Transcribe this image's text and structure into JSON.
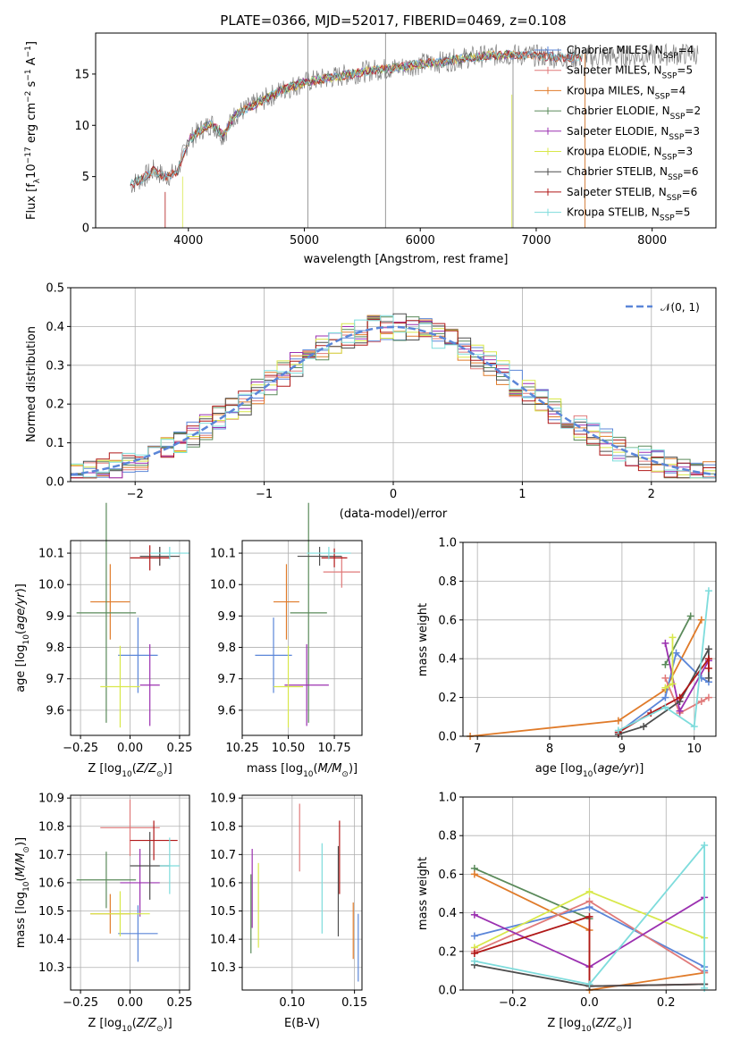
{
  "figure_title": "PLATE=0366, MJD=52017, FIBERID=0469, z=0.108",
  "colors": {
    "Chabrier MILES": "#5b86d8",
    "Salpeter MILES": "#e07a7a",
    "Kroupa MILES": "#e07b2a",
    "Chabrier ELODIE": "#5a8a5a",
    "Salpeter ELODIE": "#9b30b0",
    "Kroupa ELODIE": "#d8e84a",
    "Chabrier STELIB": "#4d4d4d",
    "Salpeter STELIB": "#b01818",
    "Kroupa STELIB": "#7edcdc",
    "data_gray": "#808080",
    "pink": "#e884c0",
    "gaussian": "#5b86d8"
  },
  "chart_data": [
    {
      "id": "spectrum",
      "type": "line",
      "title": "PLATE=0366, MJD=52017, FIBERID=0469, z=0.108",
      "xlabel": "wavelength [Angstrom, rest frame]",
      "ylabel": "Flux [f",
      "xlim": [
        3200,
        8550
      ],
      "ylim": [
        0,
        19
      ],
      "xticks": [
        "4000",
        "5000",
        "6000",
        "7000",
        "8000"
      ],
      "yticks": [
        "0",
        "5",
        "10",
        "15"
      ],
      "legend_position": "top-right",
      "legend": [
        {
          "label": "Chabrier MILES, N",
          "nssp": "4",
          "color_key": "Chabrier MILES"
        },
        {
          "label": "Salpeter MILES, N",
          "nssp": "5",
          "color_key": "Salpeter MILES"
        },
        {
          "label": "Kroupa MILES, N",
          "nssp": "4",
          "color_key": "Kroupa MILES"
        },
        {
          "label": "Chabrier ELODIE, N",
          "nssp": "2",
          "color_key": "Chabrier ELODIE"
        },
        {
          "label": "Salpeter ELODIE, N",
          "nssp": "3",
          "color_key": "Salpeter ELODIE"
        },
        {
          "label": "Kroupa ELODIE, N",
          "nssp": "3",
          "color_key": "Kroupa ELODIE"
        },
        {
          "label": "Chabrier STELIB, N",
          "nssp": "6",
          "color_key": "Chabrier STELIB"
        },
        {
          "label": "Salpeter STELIB, N",
          "nssp": "6",
          "color_key": "Salpeter STELIB"
        },
        {
          "label": "Kroupa STELIB, N",
          "nssp": "5",
          "color_key": "Kroupa STELIB"
        }
      ],
      "continuum": [
        [
          3500,
          4.2
        ],
        [
          3600,
          4.8
        ],
        [
          3700,
          5.6
        ],
        [
          3800,
          5.0
        ],
        [
          3900,
          5.4
        ],
        [
          4000,
          8.5
        ],
        [
          4100,
          9.5
        ],
        [
          4200,
          10.2
        ],
        [
          4300,
          9.0
        ],
        [
          4400,
          11.0
        ],
        [
          4600,
          12.2
        ],
        [
          4800,
          13.4
        ],
        [
          5000,
          14.2
        ],
        [
          5200,
          14.6
        ],
        [
          5400,
          15.0
        ],
        [
          5600,
          15.4
        ],
        [
          5800,
          15.6
        ],
        [
          6000,
          16.0
        ],
        [
          6200,
          16.2
        ],
        [
          6400,
          16.6
        ],
        [
          6600,
          16.8
        ],
        [
          6800,
          16.9
        ],
        [
          7000,
          16.8
        ],
        [
          7200,
          16.6
        ],
        [
          7400,
          16.6
        ]
      ]
    },
    {
      "id": "residual-histogram",
      "type": "line",
      "xlabel": "(data-model)/error",
      "ylabel": "Normed distribution",
      "xlim": [
        -2.5,
        2.5
      ],
      "ylim": [
        0,
        0.5
      ],
      "xticks": [
        "−2",
        "−1",
        "0",
        "1",
        "2"
      ],
      "yticks": [
        "0.0",
        "0.1",
        "0.2",
        "0.3",
        "0.4",
        "0.5"
      ],
      "legend": "𝒩(0, 1)",
      "legend_position": "top-right",
      "bin_width": 0.1
    },
    {
      "id": "age-vs-z",
      "type": "scatter",
      "xlabel": "Z [log",
      "ylabel": "age  [log",
      "xlim": [
        -0.3,
        0.3
      ],
      "ylim": [
        9.52,
        10.14
      ],
      "xticks": [
        "−0.25",
        "0.00",
        "0.25"
      ],
      "yticks": [
        "9.6",
        "9.7",
        "9.8",
        "9.9",
        "10.0",
        "10.1"
      ],
      "points": [
        {
          "model": "Chabrier MILES",
          "x": 0.04,
          "xerr": 0.1,
          "y": 9.775,
          "yerr": 0.12
        },
        {
          "model": "Salpeter MILES",
          "x": 0.15,
          "xerr": 0.1,
          "y": 10.09,
          "yerr": 0.03
        },
        {
          "model": "Kroupa MILES",
          "x": -0.1,
          "xerr": 0.1,
          "y": 9.945,
          "yerr": 0.12
        },
        {
          "model": "Chabrier ELODIE",
          "x": -0.12,
          "xerr": 0.15,
          "y": 9.91,
          "yerr": 0.35
        },
        {
          "model": "Salpeter ELODIE",
          "x": 0.1,
          "xerr": 0.05,
          "y": 9.68,
          "yerr": 0.13
        },
        {
          "model": "Kroupa ELODIE",
          "x": -0.05,
          "xerr": 0.1,
          "y": 9.675,
          "yerr": 0.13
        },
        {
          "model": "Chabrier STELIB",
          "x": 0.15,
          "xerr": 0.1,
          "y": 10.09,
          "yerr": 0.03
        },
        {
          "model": "Salpeter STELIB",
          "x": 0.1,
          "xerr": 0.1,
          "y": 10.085,
          "yerr": 0.04
        },
        {
          "model": "Kroupa STELIB",
          "x": 0.2,
          "xerr": 0.1,
          "y": 10.1,
          "yerr": 0.02
        }
      ]
    },
    {
      "id": "age-vs-mass",
      "type": "scatter",
      "xlabel": "mass [log",
      "ylabel": "",
      "xlim": [
        10.25,
        10.9
      ],
      "ylim": [
        9.52,
        10.14
      ],
      "xticks": [
        "10.25",
        "10.50",
        "10.75"
      ],
      "yticks": [
        "9.6",
        "9.7",
        "9.8",
        "9.9",
        "10.0",
        "10.1"
      ],
      "points": [
        {
          "model": "Chabrier MILES",
          "x": 10.42,
          "xerr": 0.1,
          "y": 9.775,
          "yerr": 0.12
        },
        {
          "model": "Salpeter MILES",
          "x": 10.79,
          "xerr": 0.1,
          "y": 10.04,
          "yerr": 0.05
        },
        {
          "model": "Kroupa MILES",
          "x": 10.49,
          "xerr": 0.07,
          "y": 9.945,
          "yerr": 0.12
        },
        {
          "model": "Chabrier ELODIE",
          "x": 10.61,
          "xerr": 0.1,
          "y": 9.91,
          "yerr": 0.35
        },
        {
          "model": "Salpeter ELODIE",
          "x": 10.6,
          "xerr": 0.12,
          "y": 9.68,
          "yerr": 0.13
        },
        {
          "model": "Kroupa ELODIE",
          "x": 10.5,
          "xerr": 0.08,
          "y": 9.675,
          "yerr": 0.13
        },
        {
          "model": "Chabrier STELIB",
          "x": 10.67,
          "xerr": 0.12,
          "y": 10.09,
          "yerr": 0.03
        },
        {
          "model": "Salpeter STELIB",
          "x": 10.75,
          "xerr": 0.07,
          "y": 10.085,
          "yerr": 0.03
        },
        {
          "model": "Kroupa STELIB",
          "x": 10.72,
          "xerr": 0.12,
          "y": 10.1,
          "yerr": 0.02
        }
      ]
    },
    {
      "id": "massweight-vs-age",
      "type": "line",
      "xlabel": "age  [log",
      "ylabel": "mass weight",
      "xlim": [
        6.8,
        10.3
      ],
      "ylim": [
        0,
        1
      ],
      "xticks": [
        "7",
        "8",
        "9",
        "10"
      ],
      "yticks": [
        "0.0",
        "0.2",
        "0.4",
        "0.6",
        "0.8",
        "1.0"
      ],
      "series": [
        {
          "model": "Kroupa MILES",
          "x": [
            6.9,
            8.95,
            9.6,
            10.1
          ],
          "y": [
            0.0,
            0.08,
            0.24,
            0.6
          ]
        },
        {
          "model": "Chabrier MILES",
          "x": [
            8.95,
            9.6,
            9.75,
            10.1,
            10.2
          ],
          "y": [
            0.02,
            0.2,
            0.43,
            0.3,
            0.28
          ]
        },
        {
          "model": "Salpeter MILES",
          "x": [
            9.6,
            9.8,
            10.1,
            10.2
          ],
          "y": [
            0.3,
            0.12,
            0.18,
            0.2
          ]
        },
        {
          "model": "Chabrier ELODIE",
          "x": [
            9.6,
            9.95
          ],
          "y": [
            0.37,
            0.62
          ]
        },
        {
          "model": "Salpeter ELODIE",
          "x": [
            9.6,
            9.8,
            10.2
          ],
          "y": [
            0.48,
            0.13,
            0.39
          ]
        },
        {
          "model": "Kroupa ELODIE",
          "x": [
            9.6,
            9.7,
            9.7
          ],
          "y": [
            0.25,
            0.27,
            0.51
          ]
        },
        {
          "model": "Chabrier STELIB",
          "x": [
            8.95,
            9.3,
            9.8,
            10.2,
            10.2
          ],
          "y": [
            0.01,
            0.05,
            0.18,
            0.45,
            0.3
          ]
        },
        {
          "model": "Salpeter STELIB",
          "x": [
            8.95,
            9.4,
            9.8,
            10.2,
            10.2
          ],
          "y": [
            0.02,
            0.12,
            0.2,
            0.4,
            0.35
          ]
        },
        {
          "model": "Kroupa STELIB",
          "x": [
            8.95,
            9.6,
            10.0,
            10.2
          ],
          "y": [
            0.03,
            0.15,
            0.05,
            0.75
          ]
        }
      ]
    },
    {
      "id": "mass-vs-z",
      "type": "scatter",
      "xlabel": "Z [log",
      "ylabel": "mass [log",
      "xlim": [
        -0.3,
        0.3
      ],
      "ylim": [
        10.22,
        10.91
      ],
      "xticks": [
        "−0.25",
        "0.00",
        "0.25"
      ],
      "yticks": [
        "10.3",
        "10.4",
        "10.5",
        "10.6",
        "10.7",
        "10.8",
        "10.9"
      ],
      "points": [
        {
          "model": "Chabrier MILES",
          "x": 0.04,
          "xerr": 0.1,
          "y": 10.42,
          "yerr": 0.1
        },
        {
          "model": "Salpeter MILES",
          "x": 0.0,
          "xerr": 0.15,
          "y": 10.795,
          "yerr": 0.1
        },
        {
          "model": "Kroupa MILES",
          "x": -0.1,
          "xerr": 0.1,
          "y": 10.49,
          "yerr": 0.07
        },
        {
          "model": "Chabrier ELODIE",
          "x": -0.12,
          "xerr": 0.15,
          "y": 10.61,
          "yerr": 0.1
        },
        {
          "model": "Salpeter ELODIE",
          "x": 0.05,
          "xerr": 0.1,
          "y": 10.6,
          "yerr": 0.12
        },
        {
          "model": "Kroupa ELODIE",
          "x": -0.05,
          "xerr": 0.15,
          "y": 10.49,
          "yerr": 0.08
        },
        {
          "model": "Chabrier STELIB",
          "x": 0.1,
          "xerr": 0.1,
          "y": 10.66,
          "yerr": 0.12
        },
        {
          "model": "Salpeter STELIB",
          "x": 0.12,
          "xerr": 0.12,
          "y": 10.75,
          "yerr": 0.07
        },
        {
          "model": "Kroupa STELIB",
          "x": 0.2,
          "xerr": 0.05,
          "y": 10.66,
          "yerr": 0.1
        }
      ]
    },
    {
      "id": "mass-vs-ebv",
      "type": "scatter",
      "xlabel": "E(B-V)",
      "ylabel": "",
      "xlim": [
        0.06,
        0.156
      ],
      "ylim": [
        10.22,
        10.91
      ],
      "xticks": [
        "0.10",
        "0.15"
      ],
      "yticks": [
        "10.3",
        "10.4",
        "10.5",
        "10.6",
        "10.7",
        "10.8",
        "10.9"
      ],
      "points": [
        {
          "model": "Chabrier MILES",
          "x": 0.153,
          "y": 10.37,
          "yerr": 0.12
        },
        {
          "model": "Salpeter MILES",
          "x": 0.106,
          "y": 10.76,
          "yerr": 0.12
        },
        {
          "model": "Kroupa MILES",
          "x": 0.149,
          "y": 10.43,
          "yerr": 0.1
        },
        {
          "model": "Chabrier ELODIE",
          "x": 0.067,
          "y": 10.49,
          "yerr": 0.14
        },
        {
          "model": "Salpeter ELODIE",
          "x": 0.068,
          "y": 10.58,
          "yerr": 0.14
        },
        {
          "model": "Kroupa ELODIE",
          "x": 0.073,
          "y": 10.52,
          "yerr": 0.15
        },
        {
          "model": "Chabrier STELIB",
          "x": 0.137,
          "y": 10.57,
          "yerr": 0.16
        },
        {
          "model": "Salpeter STELIB",
          "x": 0.138,
          "y": 10.69,
          "yerr": 0.13
        },
        {
          "model": "Kroupa STELIB",
          "x": 0.124,
          "y": 10.58,
          "yerr": 0.16
        }
      ]
    },
    {
      "id": "massweight-vs-z",
      "type": "line",
      "xlabel": "Z [log",
      "ylabel": "mass weight",
      "xlim": [
        -0.33,
        0.33
      ],
      "ylim": [
        0,
        1
      ],
      "xticks": [
        "−0.2",
        "0.0",
        "0.2"
      ],
      "yticks": [
        "0.0",
        "0.2",
        "0.4",
        "0.6",
        "0.8",
        "1.0"
      ],
      "series": [
        {
          "model": "Chabrier ELODIE",
          "x": [
            -0.3,
            0.0
          ],
          "y": [
            0.63,
            0.37
          ]
        },
        {
          "model": "Kroupa MILES",
          "x": [
            -0.3,
            0.0,
            0.0,
            0.3
          ],
          "y": [
            0.6,
            0.31,
            0.0,
            0.09
          ]
        },
        {
          "model": "Chabrier MILES",
          "x": [
            -0.3,
            0.0,
            0.3,
            0.3
          ],
          "y": [
            0.28,
            0.43,
            0.12,
            0.1
          ]
        },
        {
          "model": "Kroupa ELODIE",
          "x": [
            -0.3,
            0.0,
            0.3
          ],
          "y": [
            0.22,
            0.51,
            0.27
          ]
        },
        {
          "model": "Salpeter MILES",
          "x": [
            -0.3,
            0.0,
            0.3
          ],
          "y": [
            0.2,
            0.46,
            0.09
          ]
        },
        {
          "model": "Salpeter ELODIE",
          "x": [
            -0.3,
            0.0,
            0.3
          ],
          "y": [
            0.39,
            0.12,
            0.48
          ]
        },
        {
          "model": "Salpeter STELIB",
          "x": [
            -0.3,
            0.0,
            0.0,
            0.3
          ],
          "y": [
            0.19,
            0.38,
            0.02,
            0.03
          ]
        },
        {
          "model": "Chabrier STELIB",
          "x": [
            -0.3,
            0.0,
            0.3
          ],
          "y": [
            0.13,
            0.02,
            0.03
          ]
        },
        {
          "model": "Kroupa STELIB",
          "x": [
            -0.3,
            0.0,
            0.3,
            0.3
          ],
          "y": [
            0.15,
            0.03,
            0.75,
            0.01
          ]
        }
      ]
    }
  ]
}
